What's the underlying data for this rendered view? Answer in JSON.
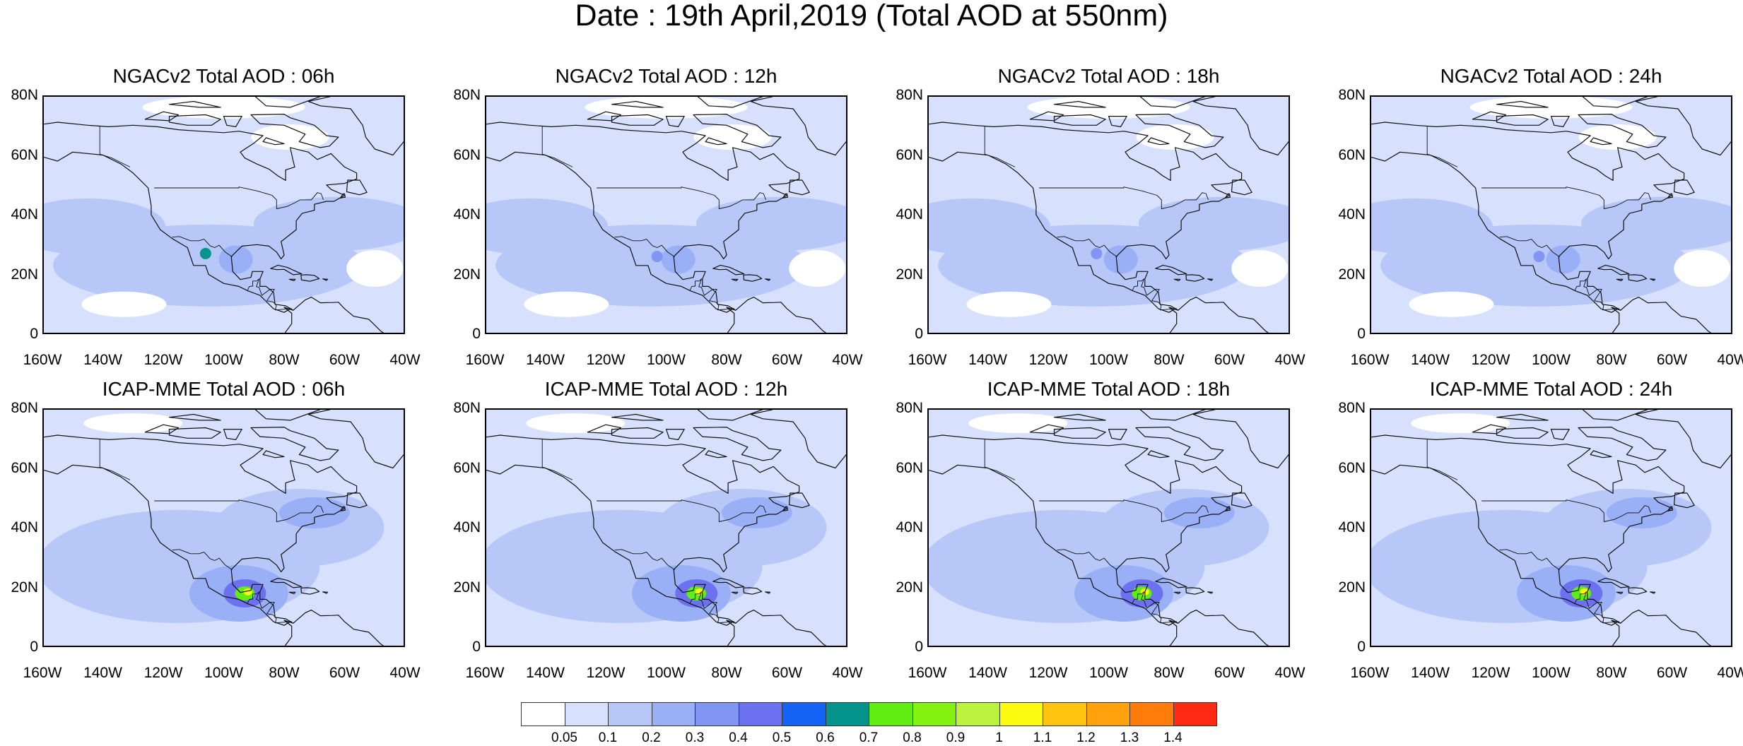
{
  "title": "Date : 19th April,2019 (Total AOD at 550nm)",
  "lat_labels": [
    "80N",
    "60N",
    "40N",
    "20N",
    "0"
  ],
  "lon_labels": [
    "160W",
    "140W",
    "120W",
    "100W",
    "80W",
    "60W",
    "40W"
  ],
  "panels": [
    {
      "title": "NGACv2 Total AOD : 06h",
      "model": "NGACv2",
      "hour": "06h"
    },
    {
      "title": "NGACv2 Total AOD : 12h",
      "model": "NGACv2",
      "hour": "12h"
    },
    {
      "title": "NGACv2 Total AOD : 18h",
      "model": "NGACv2",
      "hour": "18h"
    },
    {
      "title": "NGACv2 Total AOD : 24h",
      "model": "NGACv2",
      "hour": "24h"
    },
    {
      "title": "ICAP-MME Total AOD : 06h",
      "model": "ICAP-MME",
      "hour": "06h"
    },
    {
      "title": "ICAP-MME Total AOD : 12h",
      "model": "ICAP-MME",
      "hour": "12h"
    },
    {
      "title": "ICAP-MME Total AOD : 18h",
      "model": "ICAP-MME",
      "hour": "18h"
    },
    {
      "title": "ICAP-MME Total AOD : 24h",
      "model": "ICAP-MME",
      "hour": "24h"
    }
  ],
  "colorbar": {
    "labels": [
      "0.05",
      "0.1",
      "0.2",
      "0.3",
      "0.4",
      "0.5",
      "0.6",
      "0.7",
      "0.8",
      "0.9",
      "1",
      "1.1",
      "1.2",
      "1.3",
      "1.4"
    ],
    "colors": [
      "#ffffff",
      "#d7e1fd",
      "#b7c7f8",
      "#99b0f6",
      "#8195f4",
      "#6c71f0",
      "#1463f5",
      "#05948b",
      "#61ec12",
      "#85f210",
      "#bbf33e",
      "#fbfb0f",
      "#ffc312",
      "#ffa20e",
      "#ff7c0b",
      "#ff2a12"
    ]
  }
}
